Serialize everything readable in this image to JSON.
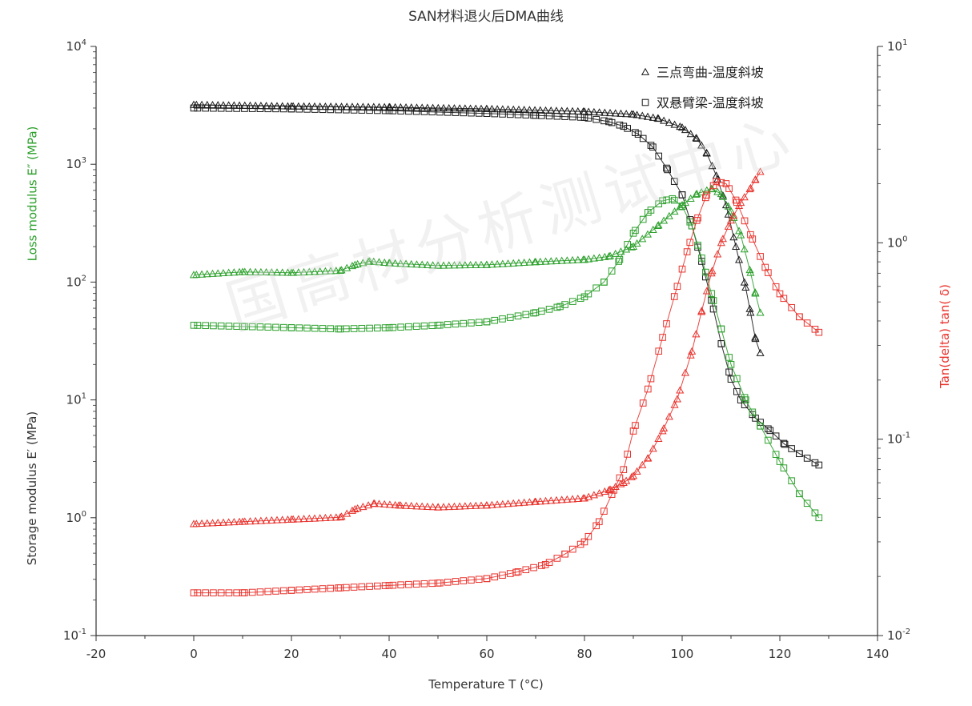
{
  "chart_data": {
    "type": "scatter",
    "title": "SAN材料退火后DMA曲线",
    "watermark": "国高材分析测试中心",
    "xlabel": "Temperature  T  (°C)",
    "xlim": [
      -20,
      140
    ],
    "xticks": [
      -20,
      0,
      20,
      40,
      60,
      80,
      100,
      120,
      140
    ],
    "ylabel_left_upper": "Loss modulus  E″  (MPa)",
    "ylabel_left_lower": "Storage modulus  E′  (MPa)",
    "ylabel_right": "Tan(delta) tan( δ)",
    "ylim_left": [
      0.1,
      10000
    ],
    "yscale_left": "log",
    "yticks_left": [
      {
        "base": "10",
        "exp": "-1"
      },
      {
        "base": "10",
        "exp": "0"
      },
      {
        "base": "10",
        "exp": "1"
      },
      {
        "base": "10",
        "exp": "2"
      },
      {
        "base": "10",
        "exp": "3"
      },
      {
        "base": "10",
        "exp": "4"
      }
    ],
    "ylim_right": [
      0.01,
      10
    ],
    "yscale_right": "log",
    "yticks_right": [
      {
        "base": "10",
        "exp": "-2"
      },
      {
        "base": "10",
        "exp": "-1"
      },
      {
        "base": "10",
        "exp": "0"
      },
      {
        "base": "10",
        "exp": "1"
      }
    ],
    "legend": {
      "placement": "top-right",
      "entries": [
        {
          "marker": "triangle",
          "label": "三点弯曲-温度斜坡"
        },
        {
          "marker": "square",
          "label": "双悬臂梁-温度斜坡"
        }
      ]
    },
    "colors": {
      "storage": "#1a1a1a",
      "loss": "#2ca02c",
      "tan": "#e8322c",
      "axis": "#333333",
      "watermark": "#d9d9d9"
    },
    "series": [
      {
        "quantity": "storage",
        "marker": "triangle",
        "axis": "left",
        "color": "#1a1a1a",
        "x": [
          0,
          20,
          40,
          60,
          80,
          90,
          95,
          100,
          103,
          105,
          107,
          109,
          111,
          113,
          114,
          115,
          116
        ],
        "y": [
          3200,
          3100,
          3050,
          2950,
          2800,
          2650,
          2450,
          2050,
          1650,
          1250,
          800,
          450,
          200,
          90,
          55,
          33,
          25
        ]
      },
      {
        "quantity": "storage",
        "marker": "square",
        "axis": "left",
        "color": "#1a1a1a",
        "x": [
          0,
          20,
          40,
          60,
          70,
          80,
          85,
          88,
          91,
          94,
          97,
          100,
          102,
          104,
          106,
          108,
          110,
          112,
          115,
          118,
          121,
          124,
          128
        ],
        "y": [
          3000,
          2950,
          2850,
          2700,
          2600,
          2500,
          2300,
          2100,
          1800,
          1400,
          900,
          550,
          300,
          150,
          70,
          30,
          15,
          10,
          7,
          5.5,
          4.2,
          3.5,
          2.8
        ]
      },
      {
        "quantity": "loss",
        "marker": "triangle",
        "axis": "left",
        "color": "#2ca02c",
        "x": [
          0,
          10,
          20,
          30,
          33,
          36,
          40,
          50,
          60,
          70,
          80,
          85,
          90,
          95,
          100,
          103,
          106,
          108,
          110,
          112,
          114,
          115,
          116
        ],
        "y": [
          115,
          122,
          120,
          125,
          140,
          150,
          145,
          138,
          140,
          148,
          155,
          165,
          200,
          300,
          450,
          560,
          620,
          560,
          400,
          250,
          120,
          80,
          55
        ]
      },
      {
        "quantity": "loss",
        "marker": "square",
        "axis": "left",
        "color": "#2ca02c",
        "x": [
          0,
          10,
          20,
          30,
          40,
          50,
          60,
          70,
          75,
          80,
          84,
          87,
          90,
          93,
          96,
          98,
          100,
          102,
          104,
          106,
          108,
          110,
          113,
          116,
          120,
          124,
          128
        ],
        "y": [
          43,
          42,
          41,
          40,
          41,
          43,
          46,
          55,
          62,
          75,
          100,
          150,
          260,
          390,
          490,
          510,
          440,
          300,
          160,
          80,
          40,
          20,
          10,
          6,
          3,
          1.6,
          1
        ]
      },
      {
        "quantity": "tan_delta",
        "marker": "triangle",
        "axis": "right",
        "color": "#e8322c",
        "x": [
          0,
          10,
          20,
          30,
          33,
          37,
          42,
          50,
          60,
          70,
          80,
          85,
          88,
          90,
          93,
          96,
          99,
          102,
          104,
          106,
          108,
          110,
          112,
          114,
          115,
          116
        ],
        "y": [
          0.037,
          0.038,
          0.039,
          0.04,
          0.044,
          0.047,
          0.046,
          0.045,
          0.046,
          0.048,
          0.05,
          0.055,
          0.06,
          0.065,
          0.08,
          0.11,
          0.16,
          0.28,
          0.45,
          0.7,
          1.0,
          1.3,
          1.6,
          1.9,
          2.1,
          2.3
        ]
      },
      {
        "quantity": "tan_delta",
        "marker": "square",
        "axis": "right",
        "color": "#e8322c",
        "x": [
          0,
          10,
          20,
          30,
          40,
          50,
          60,
          66,
          72,
          76,
          80,
          83,
          86,
          88,
          90,
          93,
          96,
          99,
          101,
          103,
          105,
          107,
          109,
          111,
          114,
          117,
          120,
          124,
          128
        ],
        "y": [
          0.0165,
          0.0165,
          0.017,
          0.0175,
          0.018,
          0.0185,
          0.0195,
          0.021,
          0.023,
          0.026,
          0.03,
          0.038,
          0.055,
          0.07,
          0.11,
          0.18,
          0.33,
          0.6,
          0.9,
          1.3,
          1.75,
          2.05,
          2.0,
          1.65,
          1.1,
          0.75,
          0.55,
          0.42,
          0.35
        ]
      }
    ]
  }
}
